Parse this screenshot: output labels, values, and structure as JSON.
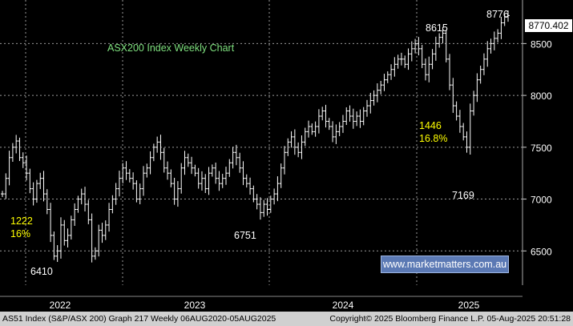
{
  "chart_data": {
    "type": "ohlc",
    "title": "ASX200 Index Weekly Chart",
    "x_axis": {
      "ticks": [
        "2022",
        "2023",
        "2024",
        "2025"
      ],
      "range": [
        "2021-09",
        "2025-08"
      ]
    },
    "y_axis": {
      "ticks": [
        6500,
        7000,
        7500,
        8000,
        8500
      ],
      "tick_labels": [
        "6500",
        "7000",
        "7500",
        "8000",
        "8500"
      ],
      "range": [
        6170,
        8920
      ],
      "side": "right"
    },
    "last_price": "8770.402",
    "series": [
      {
        "values": [
          7050,
          7200,
          7400,
          7500,
          7560,
          7400,
          7350,
          7250,
          7100,
          7000,
          7150,
          7200,
          7050,
          6900,
          6650,
          6450,
          6500,
          6750,
          6600,
          6650,
          6800,
          6900,
          7000,
          7050,
          6950,
          6800,
          6450,
          6500,
          6700,
          6650,
          6750,
          6900,
          7000,
          7100,
          7200,
          7300,
          7250,
          7200,
          7150,
          7000,
          7100,
          7250,
          7300,
          7400,
          7500,
          7550,
          7450,
          7300,
          7250,
          7150,
          7000,
          7100,
          7300,
          7400,
          7350,
          7300,
          7250,
          7150,
          7200,
          7100,
          7250,
          7300,
          7200,
          7150,
          7200,
          7250,
          7350,
          7450,
          7400,
          7300,
          7200,
          7150,
          7100,
          7000,
          6950,
          6870,
          6950,
          6900,
          7000,
          7050,
          7150,
          7300,
          7450,
          7550,
          7600,
          7500,
          7450,
          7550,
          7650,
          7700,
          7650,
          7700,
          7800,
          7850,
          7750,
          7700,
          7600,
          7650,
          7700,
          7750,
          7850,
          7800,
          7750,
          7800,
          7750,
          7850,
          7900,
          7950,
          8000,
          8050,
          8100,
          8150,
          8200,
          8250,
          8300,
          8350,
          8350,
          8300,
          8400,
          8450,
          8500,
          8450,
          8300,
          8200,
          8300,
          8400,
          8500,
          8560,
          8600,
          8350,
          8100,
          7900,
          7800,
          7700,
          7600,
          7500,
          7850,
          8000,
          8150,
          8250,
          8350,
          8450,
          8500,
          8550,
          8600,
          8700,
          8760,
          8770
        ]
      }
    ],
    "annotations": [
      {
        "text": "6410",
        "x_frac": 0.1,
        "y": 6410,
        "color": "#ffffff"
      },
      {
        "text": "1222",
        "color": "#ffff00"
      },
      {
        "text": "16%",
        "color": "#ffff00"
      },
      {
        "text": "6751",
        "color": "#ffffff"
      },
      {
        "text": "8615",
        "color": "#ffffff"
      },
      {
        "text": "1446",
        "color": "#ffff00"
      },
      {
        "text": "16.8%",
        "color": "#ffff00"
      },
      {
        "text": "7169",
        "color": "#ffffff"
      },
      {
        "text": "8776",
        "color": "#ffffff"
      }
    ],
    "grid": true,
    "colors": {
      "background": "#000000",
      "bars": "#ffffff",
      "grid": "#9a9a9a",
      "title": "#7ee07e",
      "highlight": "#ffff00"
    }
  },
  "watermark": "www.marketmatters.com.au",
  "footer": {
    "left": "AS51 Index (S&P/ASX 200) Graph 217  Weekly 06AUG2020-05AUG2025",
    "right": "Copyright© 2025 Bloomberg Finance L.P.    05-Aug-2025 20:51:28"
  }
}
